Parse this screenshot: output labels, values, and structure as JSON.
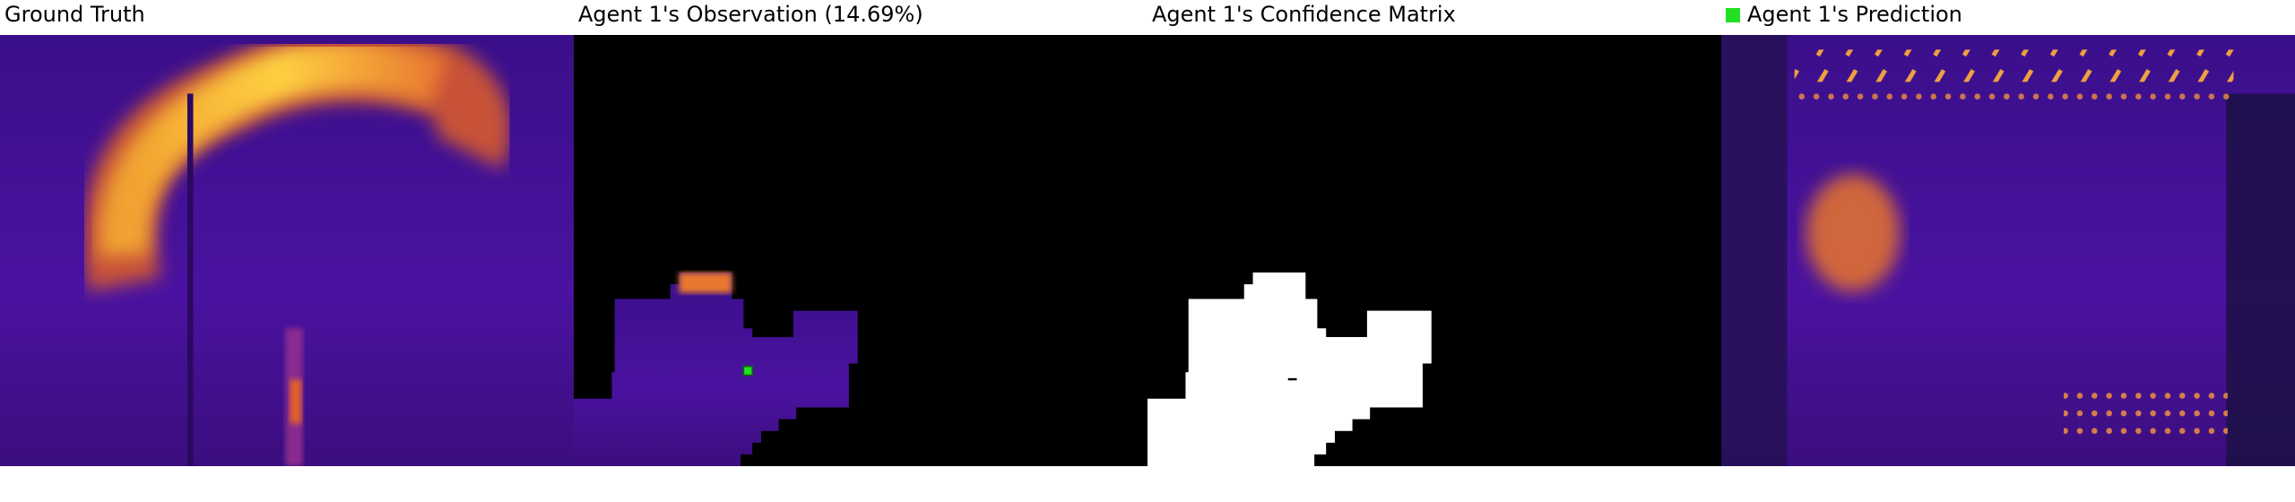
{
  "panels": [
    {
      "title": "Ground Truth"
    },
    {
      "title": "Agent 1's Observation (14.69%)"
    },
    {
      "title": "Agent 1's Confidence Matrix"
    },
    {
      "title": "Agent 1's Prediction"
    }
  ]
}
